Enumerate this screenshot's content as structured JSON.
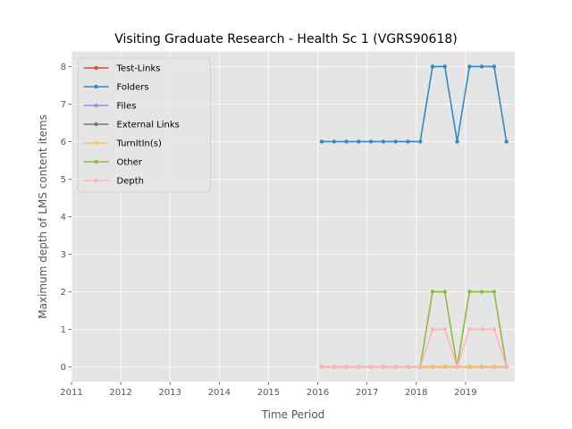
{
  "chart_data": {
    "type": "line",
    "title": "Visiting Graduate Research - Health Sc 1 (VGRS90618)",
    "xlabel": "Time Period",
    "ylabel": "Maximum depth of LMS content items",
    "xlim": [
      2011,
      2020
    ],
    "ylim": [
      -0.4,
      8.4
    ],
    "xticks": [
      2011,
      2012,
      2013,
      2014,
      2015,
      2016,
      2017,
      2018,
      2019
    ],
    "yticks": [
      0,
      1,
      2,
      3,
      4,
      5,
      6,
      7,
      8
    ],
    "grid": true,
    "legend_position": "upper-left",
    "x": [
      2016.08,
      2016.33,
      2016.58,
      2016.83,
      2017.08,
      2017.33,
      2017.58,
      2017.83,
      2018.08,
      2018.33,
      2018.58,
      2018.83,
      2019.08,
      2019.33,
      2019.58,
      2019.83
    ],
    "series": [
      {
        "name": "Test-Links",
        "color": "#E24A33",
        "values": [
          0,
          0,
          0,
          0,
          0,
          0,
          0,
          0,
          0,
          0,
          0,
          0,
          0,
          0,
          0,
          0
        ]
      },
      {
        "name": "Folders",
        "color": "#348ABD",
        "values": [
          6,
          6,
          6,
          6,
          6,
          6,
          6,
          6,
          6,
          8,
          8,
          6,
          8,
          8,
          8,
          6
        ]
      },
      {
        "name": "Files",
        "color": "#988ED5",
        "values": [
          0,
          0,
          0,
          0,
          0,
          0,
          0,
          0,
          0,
          0,
          0,
          0,
          0,
          0,
          0,
          0
        ]
      },
      {
        "name": "External Links",
        "color": "#777777",
        "values": [
          0,
          0,
          0,
          0,
          0,
          0,
          0,
          0,
          0,
          0,
          0,
          0,
          0,
          0,
          0,
          0
        ]
      },
      {
        "name": "TurnItIn(s)",
        "color": "#FBC15E",
        "values": [
          0,
          0,
          0,
          0,
          0,
          0,
          0,
          0,
          0,
          0,
          0,
          0,
          0,
          0,
          0,
          0
        ]
      },
      {
        "name": "Other",
        "color": "#8EBA42",
        "values": [
          0,
          0,
          0,
          0,
          0,
          0,
          0,
          0,
          0,
          2,
          2,
          0,
          2,
          2,
          2,
          0
        ]
      },
      {
        "name": "Depth",
        "color": "#FFB5B8",
        "values": [
          0,
          0,
          0,
          0,
          0,
          0,
          0,
          0,
          0,
          1,
          1,
          0,
          1,
          1,
          1,
          0
        ]
      }
    ]
  }
}
